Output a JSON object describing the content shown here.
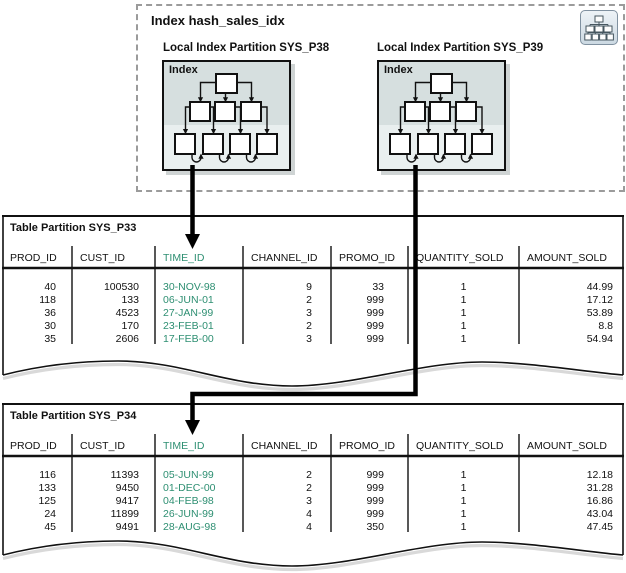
{
  "diagram": {
    "title": "Index hash_sales_idx",
    "corner_icon": "hierarchy-icon",
    "partitions": [
      {
        "label": "Local Index Partition SYS_P38",
        "inner_label": "Index"
      },
      {
        "label": "Local Index Partition SYS_P39",
        "inner_label": "Index"
      }
    ]
  },
  "tables": [
    {
      "title": "Table Partition SYS_P33",
      "columns": [
        "PROD_ID",
        "CUST_ID",
        "TIME_ID",
        "CHANNEL_ID",
        "PROMO_ID",
        "QUANTITY_SOLD",
        "AMOUNT_SOLD"
      ],
      "highlight_column": "TIME_ID",
      "rows": [
        [
          "40",
          "100530",
          "30-NOV-98",
          "9",
          "33",
          "1",
          "44.99"
        ],
        [
          "118",
          "133",
          "06-JUN-01",
          "2",
          "999",
          "1",
          "17.12"
        ],
        [
          "36",
          "4523",
          "27-JAN-99",
          "3",
          "999",
          "1",
          "53.89"
        ],
        [
          "30",
          "170",
          "23-FEB-01",
          "2",
          "999",
          "1",
          "8.8"
        ],
        [
          "35",
          "2606",
          "17-FEB-00",
          "3",
          "999",
          "1",
          "54.94"
        ]
      ]
    },
    {
      "title": "Table Partition SYS_P34",
      "columns": [
        "PROD_ID",
        "CUST_ID",
        "TIME_ID",
        "CHANNEL_ID",
        "PROMO_ID",
        "QUANTITY_SOLD",
        "AMOUNT_SOLD"
      ],
      "highlight_column": "TIME_ID",
      "rows": [
        [
          "116",
          "11393",
          "05-JUN-99",
          "2",
          "999",
          "1",
          "12.18"
        ],
        [
          "133",
          "9450",
          "01-DEC-00",
          "2",
          "999",
          "1",
          "31.28"
        ],
        [
          "125",
          "9417",
          "04-FEB-98",
          "3",
          "999",
          "1",
          "16.86"
        ],
        [
          "24",
          "11899",
          "26-JUN-99",
          "4",
          "999",
          "1",
          "43.04"
        ],
        [
          "45",
          "9491",
          "28-AUG-98",
          "4",
          "350",
          "1",
          "47.45"
        ]
      ]
    }
  ],
  "colors": {
    "highlight_text": "#2e8f72",
    "partition_fill": "#d6dfdf",
    "leaf_band_fill": "#e9efef",
    "dashed_border": "#9b9b9b",
    "arrow": "#000000"
  }
}
